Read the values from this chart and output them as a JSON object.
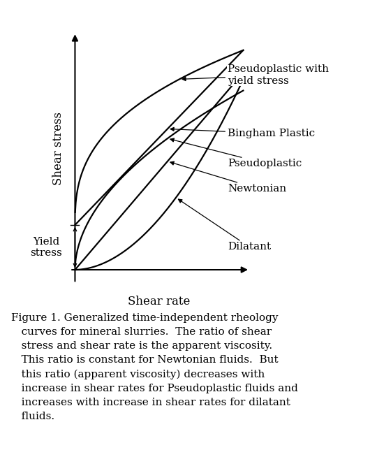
{
  "background_color": "#ffffff",
  "figure_width": 5.3,
  "figure_height": 6.64,
  "dpi": 100,
  "yield_stress_level": 0.2,
  "caption_lines": [
    "Figure 1. Generalized time-independent rheology",
    "   curves for mineral slurries.  The ratio of shear",
    "   stress and shear rate is the apparent viscosity.",
    "   This ratio is constant for Newtonian fluids.  But",
    "   this ratio (apparent viscosity) decreases with",
    "   increase in shear rates for Pseudoplastic fluids and",
    "   increases with increase in shear rates for dilatant",
    "   fluids."
  ],
  "caption_fontsize": 11.0,
  "label_fontsize": 12,
  "annotation_fontsize": 11,
  "yield_stress_label": "Yield\nstress",
  "x_label": "Shear rate",
  "y_label": "Shear stress"
}
